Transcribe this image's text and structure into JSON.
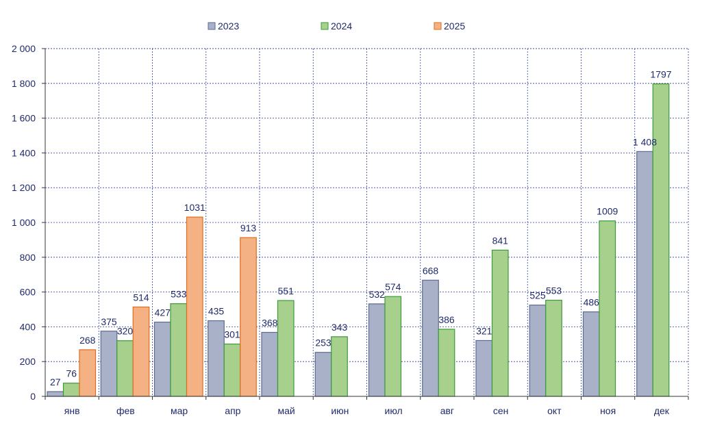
{
  "chart_data": {
    "type": "bar",
    "categories": [
      "янв",
      "фев",
      "мар",
      "апр",
      "май",
      "июн",
      "июл",
      "авг",
      "сен",
      "окт",
      "ноя",
      "дек"
    ],
    "series": [
      {
        "name": "2023",
        "color": "#a9b1c9",
        "stroke": "#5a6a90",
        "values": [
          27,
          375,
          427,
          435,
          368,
          253,
          532,
          668,
          321,
          525,
          486,
          1408
        ],
        "value_labels": [
          "27",
          "375",
          "427",
          "435",
          "368",
          "253",
          "532",
          "668",
          "321",
          "525",
          "486",
          "1 408"
        ]
      },
      {
        "name": "2024",
        "color": "#a8d08d",
        "stroke": "#3a9a3a",
        "values": [
          76,
          320,
          533,
          301,
          551,
          343,
          574,
          386,
          841,
          553,
          1009,
          1797
        ],
        "value_labels": [
          "76",
          "320",
          "533",
          "301",
          "551",
          "343",
          "574",
          "386",
          "841",
          "553",
          "1009",
          "1797"
        ]
      },
      {
        "name": "2025",
        "color": "#f4b183",
        "stroke": "#e06c1c",
        "values": [
          268,
          514,
          1031,
          913,
          null,
          null,
          null,
          null,
          null,
          null,
          null,
          null
        ],
        "value_labels": [
          "268",
          "514",
          "1031",
          "913",
          "",
          "",
          "",
          "",
          "",
          "",
          "",
          ""
        ]
      }
    ],
    "ylim": [
      0,
      2000
    ],
    "yticks": [
      0,
      200,
      400,
      600,
      800,
      1000,
      1200,
      1400,
      1600,
      1800,
      2000
    ],
    "ytick_labels": [
      "0",
      "200",
      "400",
      "600",
      "800",
      "1 000",
      "1 200",
      "1 400",
      "1 600",
      "1 800",
      "2 000"
    ],
    "grid": true,
    "legend_position": "top",
    "title": "",
    "xlabel": "",
    "ylabel": "",
    "text_color": "#1f2a6b",
    "grid_color": "#2a3aa0"
  }
}
